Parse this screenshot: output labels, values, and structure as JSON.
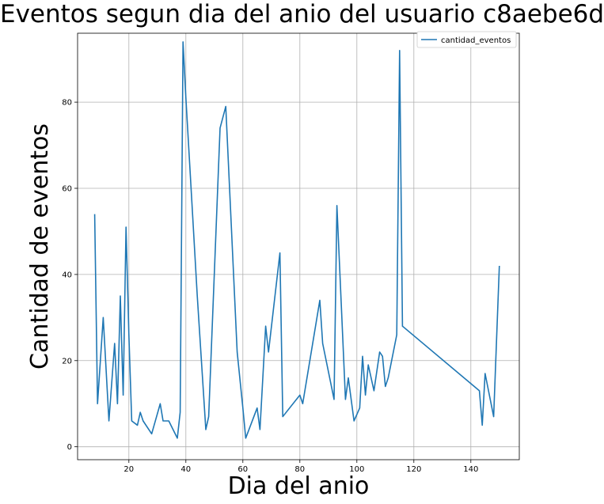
{
  "chart_data": {
    "type": "line",
    "title": "Eventos segun dia del anio del usuario c8aebe6d",
    "xlabel": "Dia del anio",
    "ylabel": "Cantidad de eventos",
    "xlim": [
      2,
      157
    ],
    "ylim": [
      -3,
      96
    ],
    "xticks": [
      20,
      40,
      60,
      80,
      100,
      120,
      140
    ],
    "yticks": [
      0,
      20,
      40,
      60,
      80
    ],
    "grid": true,
    "legend_position": "top-right",
    "series": [
      {
        "name": "cantidad_eventos",
        "color": "#1f77b4",
        "x": [
          8,
          9,
          11,
          13,
          15,
          16,
          17,
          18,
          19,
          20,
          21,
          23,
          24,
          25,
          28,
          31,
          32,
          34,
          37,
          38,
          39,
          40,
          44,
          47,
          48,
          52,
          54,
          58,
          60,
          61,
          65,
          66,
          68,
          69,
          73,
          74,
          80,
          81,
          87,
          88,
          92,
          93,
          96,
          97,
          99,
          101,
          102,
          103,
          104,
          106,
          108,
          109,
          110,
          111,
          114,
          115,
          116,
          143,
          144,
          145,
          148,
          150
        ],
        "y": [
          54,
          10,
          30,
          6,
          24,
          10,
          35,
          12,
          51,
          26,
          6,
          5,
          8,
          6,
          3,
          10,
          6,
          6,
          2,
          8,
          94,
          81,
          35,
          4,
          7,
          74,
          79,
          22,
          9,
          2,
          9,
          4,
          28,
          22,
          45,
          7,
          12,
          10,
          34,
          24,
          11,
          56,
          11,
          16,
          6,
          9,
          21,
          12,
          19,
          13,
          22,
          21,
          14,
          16,
          26,
          92,
          28,
          13,
          5,
          17,
          7,
          42
        ]
      }
    ]
  }
}
